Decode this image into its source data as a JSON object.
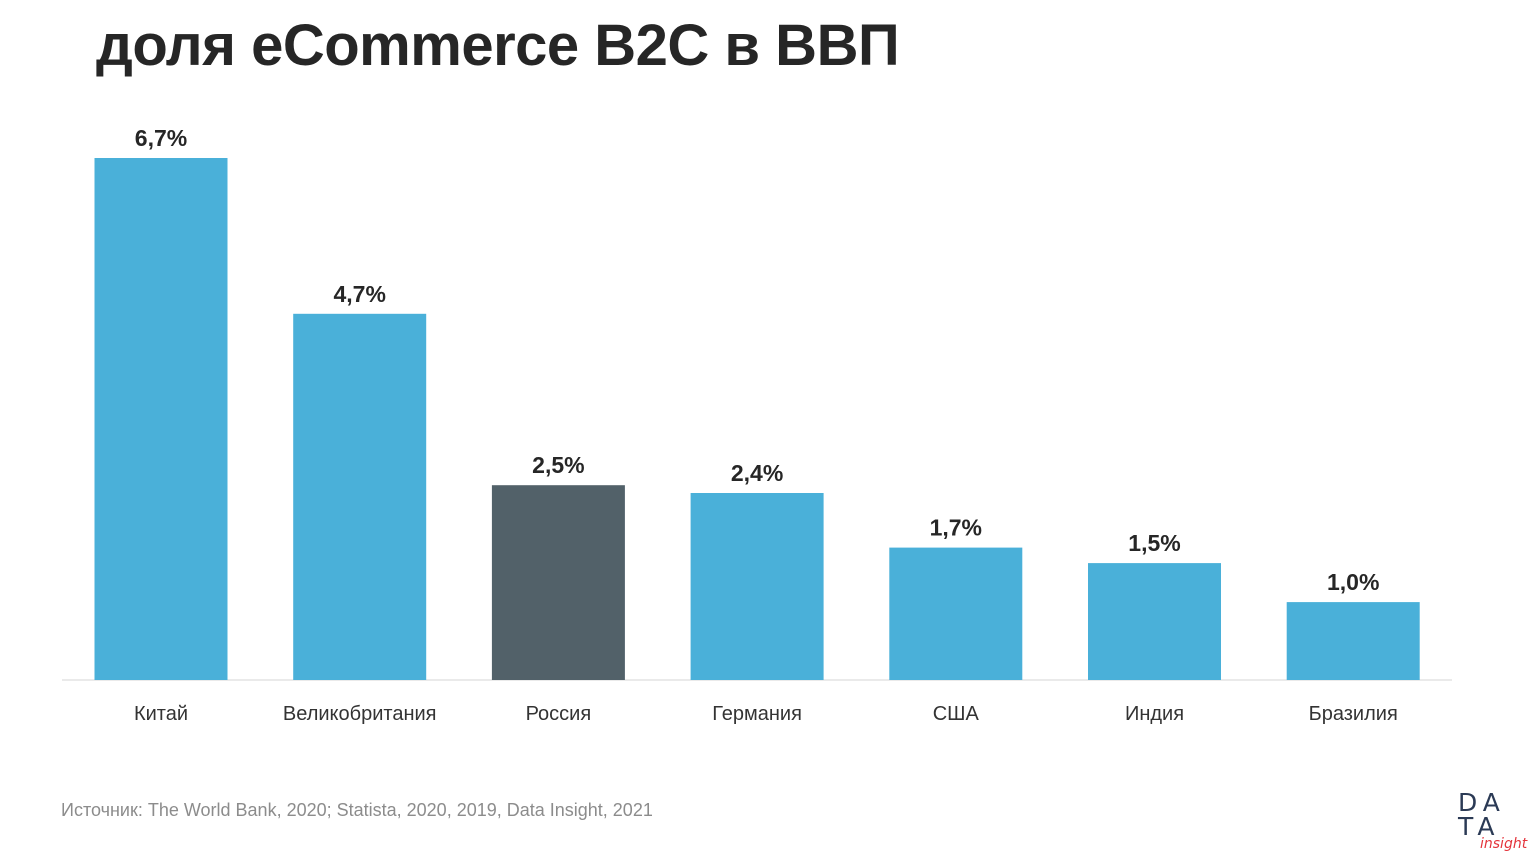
{
  "title": "доля eCommerce B2C в ВВП",
  "source": "Источник: The World Bank, 2020; Statista, 2020, 2019, Data Insight, 2021",
  "logo": {
    "line1": "DA",
    "line2": "TA",
    "sub": "insight"
  },
  "colors": {
    "bar": "#4ab0d9",
    "highlight": "#526169",
    "axis": "#e3e3e3"
  },
  "chart_data": {
    "type": "bar",
    "title": "доля eCommerce B2C в ВВП",
    "categories": [
      "Китай",
      "Великобритания",
      "Россия",
      "Германия",
      "США",
      "Индия",
      "Бразилия"
    ],
    "values": [
      6.7,
      4.7,
      2.5,
      2.4,
      1.7,
      1.5,
      1.0
    ],
    "value_labels": [
      "6,7%",
      "4,7%",
      "2,5%",
      "2,4%",
      "1,7%",
      "1,5%",
      "1,0%"
    ],
    "highlight_category": "Россия",
    "unit": "%",
    "ylim": [
      0,
      6.7
    ],
    "grid": false,
    "legend": "none"
  }
}
